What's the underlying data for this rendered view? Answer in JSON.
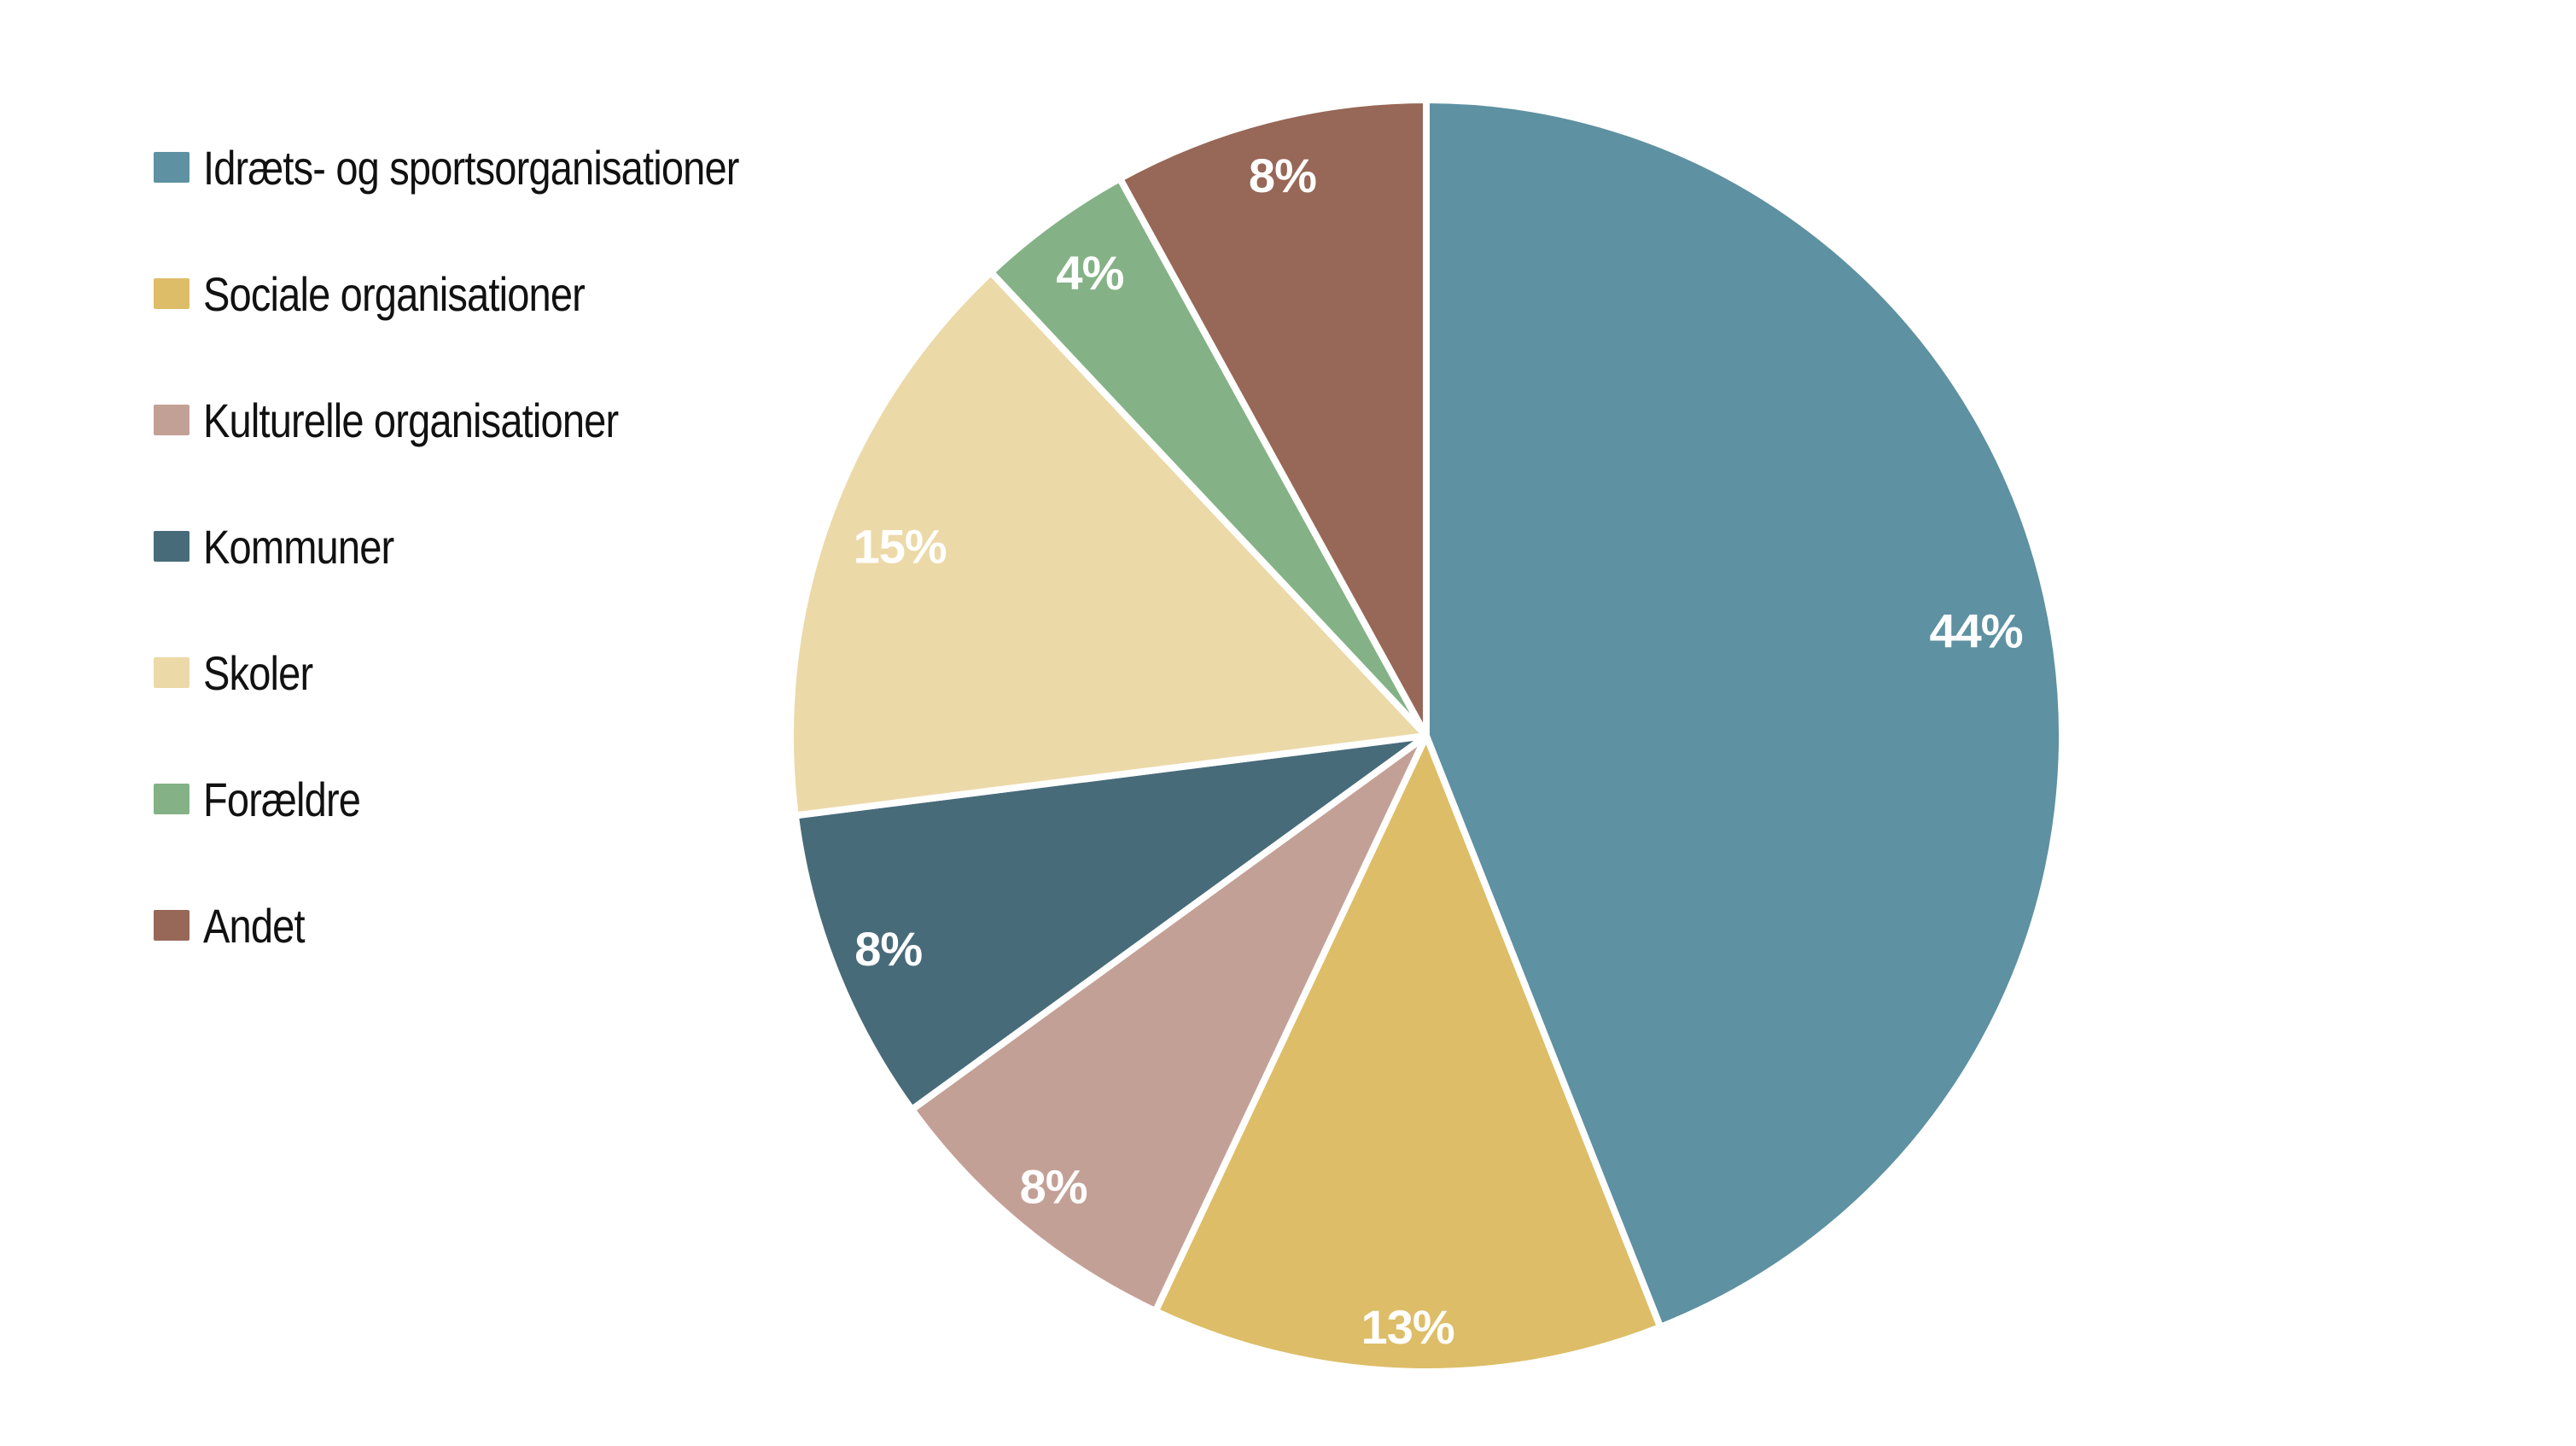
{
  "chart_data": {
    "type": "pie",
    "title": "",
    "background_color": "#ffffff",
    "legend_position": "left",
    "start_angle": "12-oclock",
    "direction": "clockwise",
    "slice_border_color": "#ffffff",
    "slice_border_width": 8,
    "label_color": "#ffffff",
    "slices": [
      {
        "label": "Idræts- og sportsorganisationer",
        "value": 44,
        "pct_label": "44%",
        "color": "#5e91a1",
        "label_radius_frac": 0.88
      },
      {
        "label": "Sociale organisationer",
        "value": 13,
        "pct_label": "13%",
        "color": "#ddbd67",
        "label_radius_frac": 0.93
      },
      {
        "label": "Kulturelle organisationer",
        "value": 8,
        "pct_label": "8%",
        "color": "#c3a096",
        "label_radius_frac": 0.92
      },
      {
        "label": "Kommuner",
        "value": 8,
        "pct_label": "8%",
        "color": "#486b79",
        "label_radius_frac": 0.91
      },
      {
        "label": "Skoler",
        "value": 15,
        "pct_label": "15%",
        "color": "#ecd9a8",
        "label_radius_frac": 0.88
      },
      {
        "label": "Forældre",
        "value": 4,
        "pct_label": "4%",
        "color": "#84b286",
        "label_radius_frac": 0.9
      },
      {
        "label": "Andet",
        "value": 8,
        "pct_label": "8%",
        "color": "#976757",
        "label_radius_frac": 0.91
      }
    ]
  }
}
